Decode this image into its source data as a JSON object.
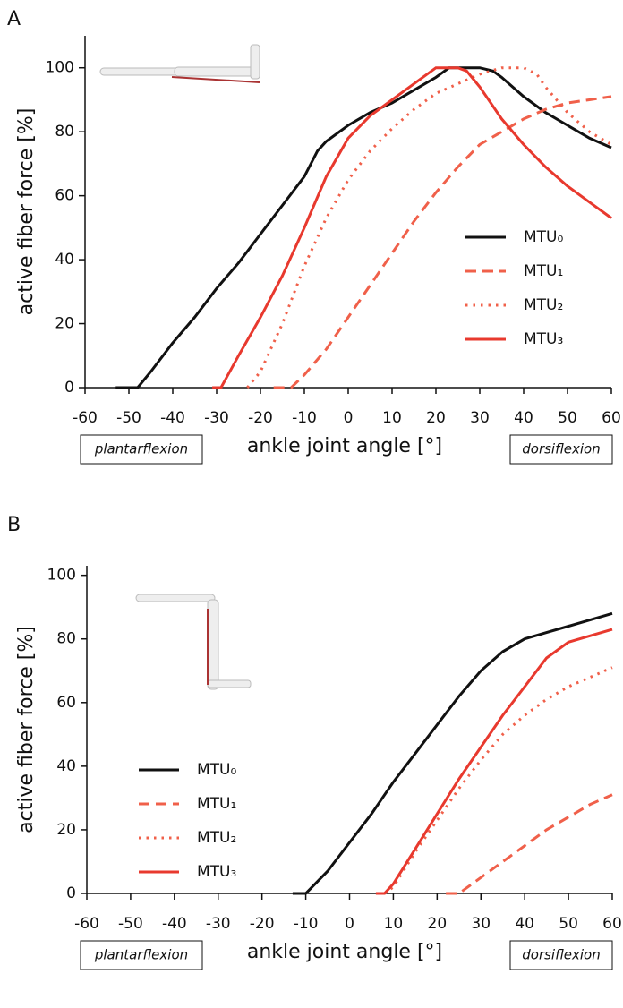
{
  "chart_data": [
    {
      "type": "line",
      "panel_label": "A",
      "xlabel": "ankle joint angle [°]",
      "ylabel": "active fiber force [%]",
      "left_note": "plantarflexion",
      "right_note": "dorsiflexion",
      "xlim": [
        -60,
        60
      ],
      "ylim": [
        0,
        110
      ],
      "xticks": [
        -60,
        -50,
        -40,
        -30,
        -20,
        -10,
        0,
        10,
        20,
        30,
        40,
        50,
        60
      ],
      "yticks": [
        0,
        20,
        40,
        60,
        80,
        100
      ],
      "legend": "right",
      "series": [
        {
          "name": "MTU₀",
          "color": "#111111",
          "dash": "solid",
          "x": [
            -53,
            -48,
            -45,
            -40,
            -35,
            -30,
            -25,
            -20,
            -15,
            -10,
            -7,
            -5,
            0,
            5,
            10,
            15,
            20,
            23,
            30,
            33,
            35,
            40,
            45,
            50,
            55,
            60
          ],
          "values": [
            0,
            0,
            5,
            14,
            22,
            31,
            39,
            48,
            57,
            66,
            74,
            77,
            82,
            86,
            89,
            93,
            97,
            100,
            100,
            99,
            97,
            91,
            86,
            82,
            78,
            75
          ]
        },
        {
          "name": "MTU₁",
          "color": "#f0604a",
          "dash": "dashed",
          "x": [
            -17,
            -13,
            -10,
            -5,
            0,
            5,
            10,
            15,
            20,
            25,
            30,
            35,
            40,
            45,
            50,
            55,
            60
          ],
          "values": [
            0,
            0,
            4,
            12,
            22,
            32,
            42,
            52,
            61,
            69,
            76,
            80,
            84,
            87,
            89,
            90,
            91
          ]
        },
        {
          "name": "MTU₂",
          "color": "#f0604a",
          "dash": "dotted",
          "x": [
            -23,
            -20,
            -15,
            -10,
            -5,
            0,
            5,
            10,
            15,
            20,
            25,
            30,
            35,
            40,
            43,
            45,
            50,
            55,
            60
          ],
          "values": [
            0,
            5,
            20,
            38,
            53,
            65,
            74,
            81,
            87,
            92,
            95,
            98,
            100,
            100,
            98,
            94,
            86,
            80,
            76
          ]
        },
        {
          "name": "MTU₃",
          "color": "#e8392e",
          "dash": "solid",
          "x": [
            -31,
            -29,
            -25,
            -20,
            -15,
            -10,
            -5,
            0,
            5,
            10,
            15,
            20,
            25,
            27,
            30,
            35,
            40,
            45,
            50,
            55,
            60
          ],
          "values": [
            0,
            0,
            10,
            22,
            35,
            50,
            66,
            78,
            85,
            90,
            95,
            100,
            100,
            99,
            94,
            84,
            76,
            69,
            63,
            58,
            53
          ]
        }
      ]
    },
    {
      "type": "line",
      "panel_label": "B",
      "xlabel": "ankle joint angle [°]",
      "ylabel": "active fiber force [%]",
      "left_note": "plantarflexion",
      "right_note": "dorsiflexion",
      "xlim": [
        -60,
        60
      ],
      "ylim": [
        0,
        103
      ],
      "xticks": [
        -60,
        -50,
        -40,
        -30,
        -20,
        -10,
        0,
        10,
        20,
        30,
        40,
        50,
        60
      ],
      "yticks": [
        0,
        20,
        40,
        60,
        80,
        100
      ],
      "legend": "left",
      "series": [
        {
          "name": "MTU₀",
          "color": "#111111",
          "dash": "solid",
          "x": [
            -13,
            -10,
            -5,
            0,
            5,
            10,
            15,
            20,
            25,
            30,
            35,
            40,
            45,
            50,
            55,
            60
          ],
          "values": [
            0,
            0,
            7,
            16,
            25,
            35,
            44,
            53,
            62,
            70,
            76,
            80,
            82,
            84,
            86,
            88
          ]
        },
        {
          "name": "MTU₁",
          "color": "#f0604a",
          "dash": "dashed",
          "x": [
            22,
            25,
            30,
            35,
            40,
            45,
            50,
            55,
            60
          ],
          "values": [
            0,
            0,
            5,
            10,
            15,
            20,
            24,
            28,
            31
          ]
        },
        {
          "name": "MTU₂",
          "color": "#f0604a",
          "dash": "dotted",
          "x": [
            8,
            10,
            15,
            20,
            25,
            30,
            35,
            40,
            45,
            50,
            55,
            60
          ],
          "values": [
            0,
            2,
            13,
            23,
            33,
            42,
            50,
            56,
            61,
            65,
            68,
            71
          ]
        },
        {
          "name": "MTU₃",
          "color": "#e8392e",
          "dash": "solid",
          "x": [
            6,
            8,
            10,
            15,
            20,
            25,
            30,
            35,
            40,
            45,
            50,
            55,
            60
          ],
          "values": [
            0,
            0,
            3,
            14,
            25,
            36,
            46,
            56,
            65,
            74,
            79,
            81,
            83
          ]
        }
      ]
    }
  ]
}
